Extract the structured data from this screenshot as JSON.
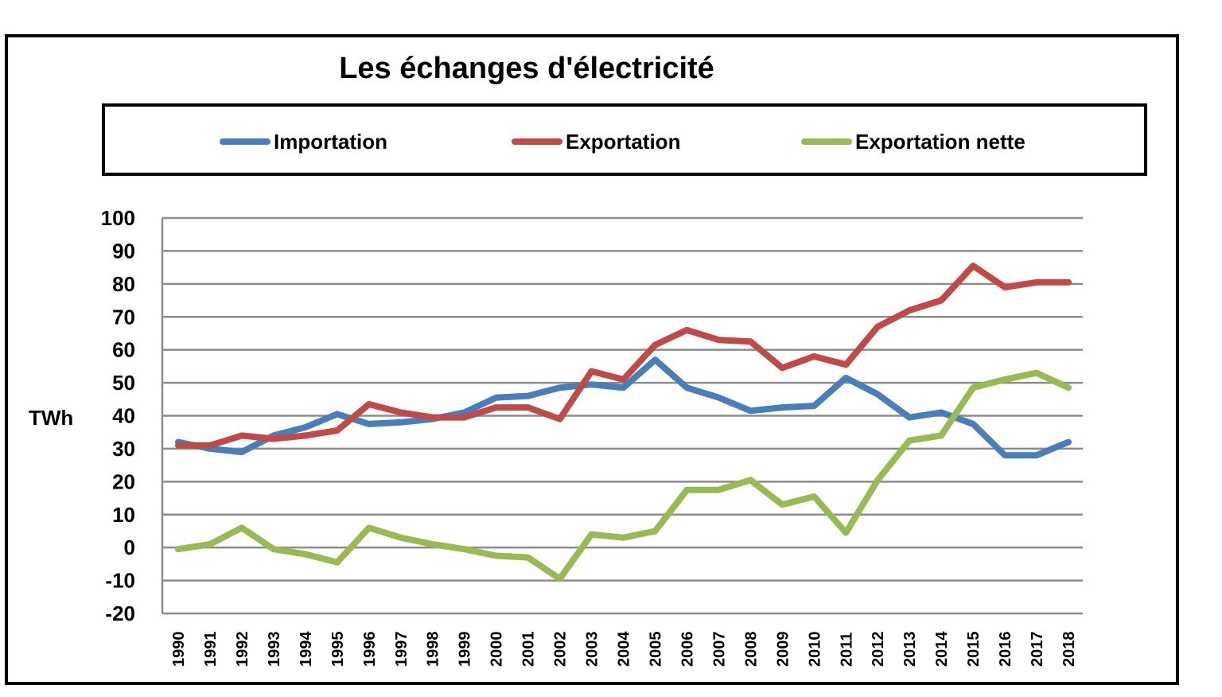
{
  "chart_data": {
    "type": "line",
    "title": "Les échanges d'électricité",
    "xlabel": "",
    "ylabel": "TWh",
    "ylim": [
      -20,
      100
    ],
    "yticks": [
      "100",
      "90",
      "80",
      "70",
      "60",
      "50",
      "40",
      "30",
      "20",
      "10",
      "0",
      "-10",
      "-20"
    ],
    "grid": true,
    "legend_position": "top",
    "categories": [
      "1990",
      "1991",
      "1992",
      "1993",
      "1994",
      "1995",
      "1996",
      "1997",
      "1998",
      "1999",
      "2000",
      "2001",
      "2002",
      "2003",
      "2004",
      "2005",
      "2006",
      "2007",
      "2008",
      "2009",
      "2010",
      "2011",
      "2012",
      "2013",
      "2014",
      "2015",
      "2016",
      "2017",
      "2018"
    ],
    "series": [
      {
        "name": "Importation",
        "color": "#4a7ebb",
        "values": [
          32,
          30,
          29,
          34,
          36.5,
          40.5,
          37.5,
          38,
          39,
          41,
          45.5,
          46,
          48.5,
          49.5,
          48.5,
          57,
          48.5,
          45.5,
          41.5,
          42.5,
          43,
          51.5,
          46.5,
          39.5,
          41,
          37.5,
          28,
          28,
          32
        ]
      },
      {
        "name": "Exportation",
        "color": "#be4b48",
        "values": [
          31,
          31,
          34,
          33,
          34,
          35.5,
          43.5,
          41,
          39.5,
          39.5,
          42.5,
          42.5,
          39,
          53.5,
          51,
          61.5,
          66,
          63,
          62.5,
          54.5,
          58,
          55.5,
          67,
          72,
          75,
          85.5,
          79,
          80.5,
          80.5
        ]
      },
      {
        "name": "Exportation nette",
        "color": "#98b954",
        "values": [
          -0.5,
          1,
          6,
          -0.5,
          -2,
          -4.5,
          6,
          3,
          1,
          -0.5,
          -2.5,
          -3,
          -9.5,
          4,
          3,
          5,
          17.5,
          17.5,
          20.5,
          13,
          15.5,
          4.5,
          20.5,
          32.5,
          34,
          48.5,
          51,
          53,
          48.5
        ]
      }
    ]
  }
}
